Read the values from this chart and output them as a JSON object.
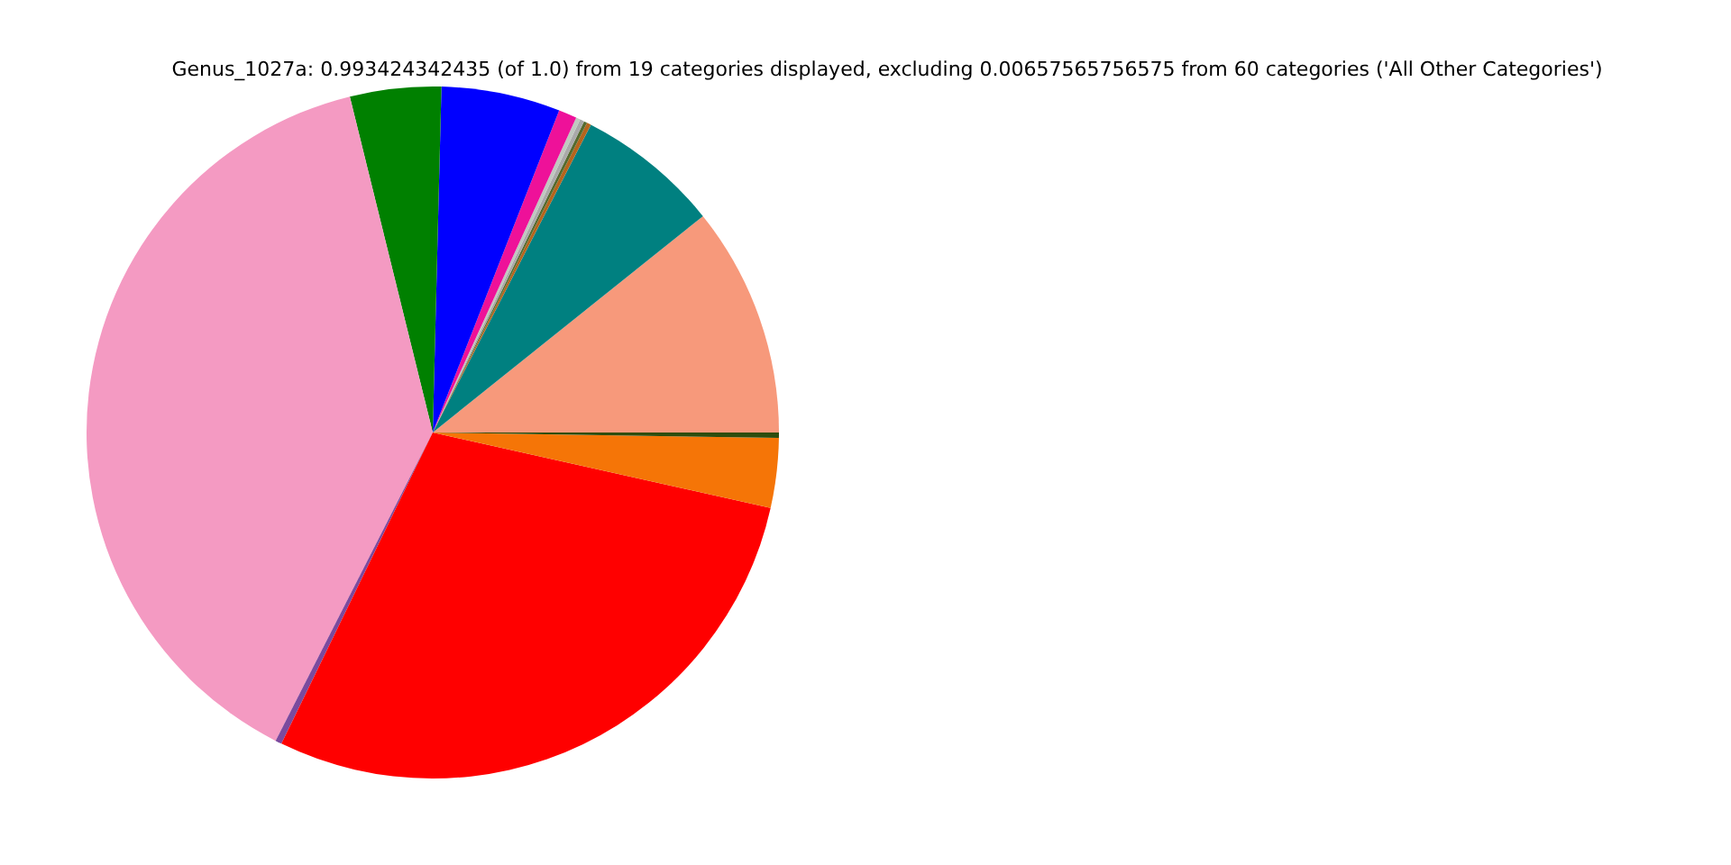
{
  "chart_data": {
    "type": "pie",
    "title": "Genus_1027a: 0.993424342435 (of 1.0) from 19 categories displayed, excluding 0.00657565756575 from 60 categories ('All Other Categories')",
    "categories": [
      null,
      null,
      null,
      null,
      null,
      null,
      null,
      null,
      null,
      null,
      null,
      null,
      null,
      null
    ],
    "values": [
      10.75,
      6.7,
      0.2,
      0.15,
      0.2,
      0.2,
      0.85,
      5.55,
      4.25,
      38.65,
      0.3,
      28.7,
      3.25,
      0.25
    ],
    "colors": [
      "#f7997b",
      "#008080",
      "#b5651d",
      "#556b2f",
      "#a9a9a9",
      "#c0c8c0",
      "#ee1199",
      "#0000ff",
      "#008000",
      "#f49ac2",
      "#7b4a9e",
      "#ff0000",
      "#f57507",
      "#2e4d0e"
    ]
  }
}
